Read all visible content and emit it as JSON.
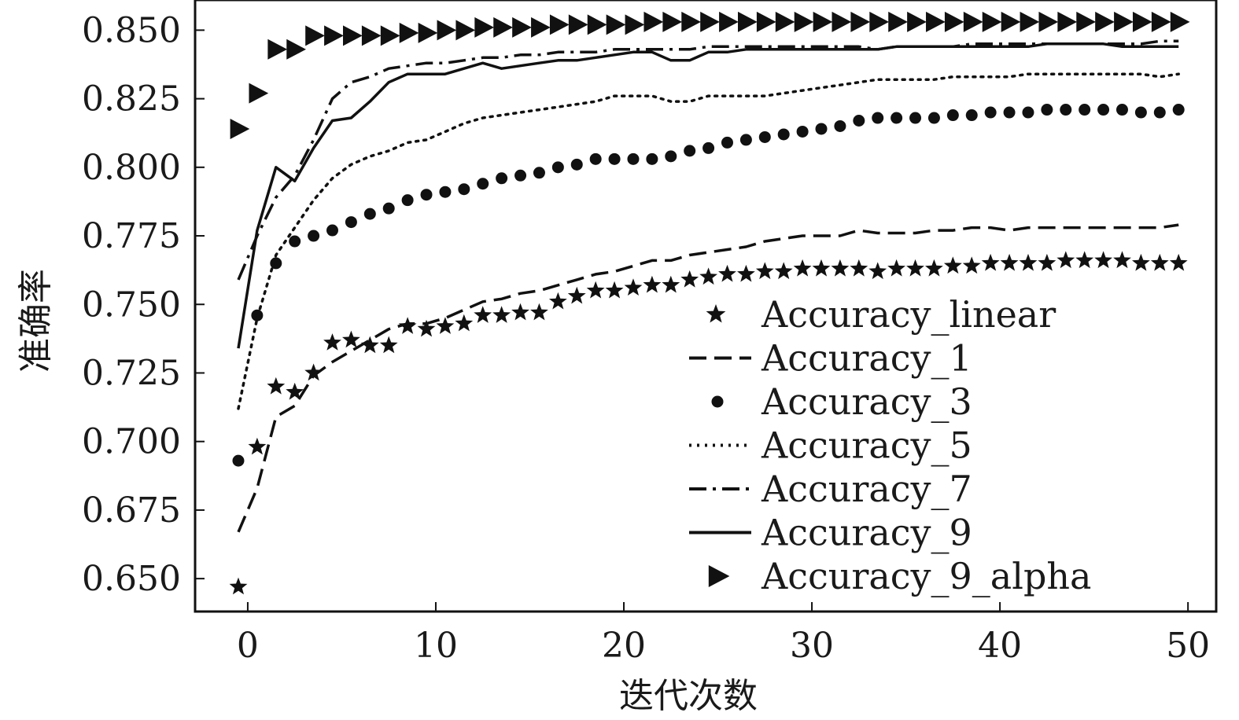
{
  "chart_data": {
    "type": "line",
    "xlabel": "迭代次数",
    "ylabel": "准确率",
    "xlim": [
      -2.8,
      51.5
    ],
    "ylim": [
      0.638,
      0.861
    ],
    "xticks": [
      0,
      10,
      20,
      30,
      40,
      50
    ],
    "xtick_labels": [
      "0",
      "10",
      "20",
      "30",
      "40",
      "50"
    ],
    "yticks": [
      0.65,
      0.675,
      0.7,
      0.725,
      0.75,
      0.775,
      0.8,
      0.825,
      0.85
    ],
    "ytick_labels": [
      "0.650",
      "0.675",
      "0.700",
      "0.725",
      "0.750",
      "0.775",
      "0.800",
      "0.825",
      "0.850"
    ],
    "grid": false,
    "legend_position": "lower-right",
    "series": [
      {
        "name": "Accuracy_linear",
        "style": "star",
        "color": "#111111",
        "x": [
          -0.5,
          0.5,
          1.5,
          2.5,
          3.5,
          4.5,
          5.5,
          6.5,
          7.5,
          8.5,
          9.5,
          10.5,
          11.5,
          12.5,
          13.5,
          14.5,
          15.5,
          16.5,
          17.5,
          18.5,
          19.5,
          20.5,
          21.5,
          22.5,
          23.5,
          24.5,
          25.5,
          26.5,
          27.5,
          28.5,
          29.5,
          30.5,
          31.5,
          32.5,
          33.5,
          34.5,
          35.5,
          36.5,
          37.5,
          38.5,
          39.5,
          40.5,
          41.5,
          42.5,
          43.5,
          44.5,
          45.5,
          46.5,
          47.5,
          48.5,
          49.5
        ],
        "y": [
          0.647,
          0.698,
          0.72,
          0.718,
          0.725,
          0.736,
          0.737,
          0.735,
          0.735,
          0.742,
          0.741,
          0.742,
          0.743,
          0.746,
          0.746,
          0.747,
          0.747,
          0.751,
          0.753,
          0.755,
          0.755,
          0.756,
          0.757,
          0.757,
          0.759,
          0.76,
          0.761,
          0.761,
          0.762,
          0.762,
          0.763,
          0.763,
          0.763,
          0.763,
          0.762,
          0.763,
          0.763,
          0.763,
          0.764,
          0.764,
          0.765,
          0.765,
          0.765,
          0.765,
          0.766,
          0.766,
          0.766,
          0.766,
          0.765,
          0.765,
          0.765
        ]
      },
      {
        "name": "Accuracy_1",
        "style": "dashed",
        "color": "#111111",
        "x": [
          -0.5,
          0.5,
          1.5,
          2.5,
          3.5,
          4.5,
          5.5,
          6.5,
          7.5,
          8.5,
          9.5,
          10.5,
          11.5,
          12.5,
          13.5,
          14.5,
          15.5,
          16.5,
          17.5,
          18.5,
          19.5,
          20.5,
          21.5,
          22.5,
          23.5,
          24.5,
          25.5,
          26.5,
          27.5,
          28.5,
          29.5,
          30.5,
          31.5,
          32.5,
          33.5,
          34.5,
          35.5,
          36.5,
          37.5,
          38.5,
          39.5,
          40.5,
          41.5,
          42.5,
          43.5,
          44.5,
          45.5,
          46.5,
          47.5,
          48.5,
          49.5
        ],
        "y": [
          0.667,
          0.683,
          0.709,
          0.713,
          0.724,
          0.729,
          0.733,
          0.737,
          0.741,
          0.743,
          0.743,
          0.745,
          0.748,
          0.751,
          0.752,
          0.754,
          0.755,
          0.757,
          0.759,
          0.761,
          0.762,
          0.764,
          0.766,
          0.766,
          0.768,
          0.769,
          0.77,
          0.771,
          0.773,
          0.774,
          0.775,
          0.775,
          0.775,
          0.777,
          0.776,
          0.776,
          0.776,
          0.777,
          0.777,
          0.778,
          0.778,
          0.777,
          0.778,
          0.778,
          0.778,
          0.778,
          0.778,
          0.778,
          0.778,
          0.778,
          0.779
        ]
      },
      {
        "name": "Accuracy_3",
        "style": "dots",
        "color": "#111111",
        "x": [
          -0.5,
          0.5,
          1.5,
          2.5,
          3.5,
          4.5,
          5.5,
          6.5,
          7.5,
          8.5,
          9.5,
          10.5,
          11.5,
          12.5,
          13.5,
          14.5,
          15.5,
          16.5,
          17.5,
          18.5,
          19.5,
          20.5,
          21.5,
          22.5,
          23.5,
          24.5,
          25.5,
          26.5,
          27.5,
          28.5,
          29.5,
          30.5,
          31.5,
          32.5,
          33.5,
          34.5,
          35.5,
          36.5,
          37.5,
          38.5,
          39.5,
          40.5,
          41.5,
          42.5,
          43.5,
          44.5,
          45.5,
          46.5,
          47.5,
          48.5,
          49.5
        ],
        "y": [
          0.693,
          0.746,
          0.765,
          0.773,
          0.775,
          0.777,
          0.78,
          0.783,
          0.785,
          0.788,
          0.79,
          0.791,
          0.792,
          0.794,
          0.796,
          0.797,
          0.798,
          0.8,
          0.801,
          0.803,
          0.803,
          0.803,
          0.803,
          0.804,
          0.806,
          0.807,
          0.809,
          0.81,
          0.811,
          0.812,
          0.813,
          0.814,
          0.815,
          0.817,
          0.818,
          0.818,
          0.818,
          0.818,
          0.819,
          0.819,
          0.82,
          0.82,
          0.82,
          0.821,
          0.821,
          0.821,
          0.821,
          0.821,
          0.82,
          0.82,
          0.821
        ]
      },
      {
        "name": "Accuracy_5",
        "style": "dotted",
        "color": "#111111",
        "x": [
          -0.5,
          0.5,
          1.5,
          2.5,
          3.5,
          4.5,
          5.5,
          6.5,
          7.5,
          8.5,
          9.5,
          10.5,
          11.5,
          12.5,
          13.5,
          14.5,
          15.5,
          16.5,
          17.5,
          18.5,
          19.5,
          20.5,
          21.5,
          22.5,
          23.5,
          24.5,
          25.5,
          26.5,
          27.5,
          28.5,
          29.5,
          30.5,
          31.5,
          32.5,
          33.5,
          34.5,
          35.5,
          36.5,
          37.5,
          38.5,
          39.5,
          40.5,
          41.5,
          42.5,
          43.5,
          44.5,
          45.5,
          46.5,
          47.5,
          48.5,
          49.5
        ],
        "y": [
          0.712,
          0.745,
          0.768,
          0.778,
          0.788,
          0.796,
          0.801,
          0.804,
          0.806,
          0.809,
          0.81,
          0.813,
          0.816,
          0.818,
          0.819,
          0.82,
          0.821,
          0.822,
          0.823,
          0.824,
          0.826,
          0.826,
          0.826,
          0.824,
          0.824,
          0.826,
          0.826,
          0.826,
          0.826,
          0.827,
          0.828,
          0.829,
          0.83,
          0.831,
          0.832,
          0.832,
          0.832,
          0.832,
          0.833,
          0.833,
          0.833,
          0.833,
          0.834,
          0.834,
          0.834,
          0.834,
          0.834,
          0.834,
          0.834,
          0.833,
          0.834
        ]
      },
      {
        "name": "Accuracy_7",
        "style": "dashdot",
        "color": "#111111",
        "x": [
          -0.5,
          0.5,
          1.5,
          2.5,
          3.5,
          4.5,
          5.5,
          6.5,
          7.5,
          8.5,
          9.5,
          10.5,
          11.5,
          12.5,
          13.5,
          14.5,
          15.5,
          16.5,
          17.5,
          18.5,
          19.5,
          20.5,
          21.5,
          22.5,
          23.5,
          24.5,
          25.5,
          26.5,
          27.5,
          28.5,
          29.5,
          30.5,
          31.5,
          32.5,
          33.5,
          34.5,
          35.5,
          36.5,
          37.5,
          38.5,
          39.5,
          40.5,
          41.5,
          42.5,
          43.5,
          44.5,
          45.5,
          46.5,
          47.5,
          48.5,
          49.5
        ],
        "y": [
          0.759,
          0.775,
          0.789,
          0.797,
          0.81,
          0.825,
          0.831,
          0.833,
          0.836,
          0.837,
          0.838,
          0.838,
          0.839,
          0.84,
          0.84,
          0.841,
          0.841,
          0.842,
          0.842,
          0.842,
          0.843,
          0.843,
          0.843,
          0.843,
          0.843,
          0.844,
          0.844,
          0.844,
          0.844,
          0.844,
          0.844,
          0.844,
          0.844,
          0.844,
          0.843,
          0.844,
          0.844,
          0.844,
          0.844,
          0.845,
          0.845,
          0.845,
          0.845,
          0.845,
          0.845,
          0.845,
          0.845,
          0.845,
          0.845,
          0.846,
          0.846
        ]
      },
      {
        "name": "Accuracy_9",
        "style": "solid",
        "color": "#111111",
        "x": [
          -0.5,
          0.5,
          1.5,
          2.5,
          3.5,
          4.5,
          5.5,
          6.5,
          7.5,
          8.5,
          9.5,
          10.5,
          11.5,
          12.5,
          13.5,
          14.5,
          15.5,
          16.5,
          17.5,
          18.5,
          19.5,
          20.5,
          21.5,
          22.5,
          23.5,
          24.5,
          25.5,
          26.5,
          27.5,
          28.5,
          29.5,
          30.5,
          31.5,
          32.5,
          33.5,
          34.5,
          35.5,
          36.5,
          37.5,
          38.5,
          39.5,
          40.5,
          41.5,
          42.5,
          43.5,
          44.5,
          45.5,
          46.5,
          47.5,
          48.5,
          49.5
        ],
        "y": [
          0.734,
          0.777,
          0.8,
          0.795,
          0.807,
          0.817,
          0.818,
          0.824,
          0.831,
          0.834,
          0.834,
          0.834,
          0.836,
          0.838,
          0.836,
          0.837,
          0.838,
          0.839,
          0.839,
          0.84,
          0.841,
          0.842,
          0.842,
          0.839,
          0.839,
          0.842,
          0.842,
          0.843,
          0.843,
          0.843,
          0.843,
          0.843,
          0.843,
          0.843,
          0.843,
          0.844,
          0.844,
          0.844,
          0.844,
          0.844,
          0.844,
          0.844,
          0.844,
          0.845,
          0.845,
          0.845,
          0.845,
          0.844,
          0.844,
          0.844,
          0.844
        ]
      },
      {
        "name": "Accuracy_9_alpha",
        "style": "triangle",
        "color": "#111111",
        "x": [
          -0.5,
          0.5,
          1.5,
          2.5,
          3.5,
          4.5,
          5.5,
          6.5,
          7.5,
          8.5,
          9.5,
          10.5,
          11.5,
          12.5,
          13.5,
          14.5,
          15.5,
          16.5,
          17.5,
          18.5,
          19.5,
          20.5,
          21.5,
          22.5,
          23.5,
          24.5,
          25.5,
          26.5,
          27.5,
          28.5,
          29.5,
          30.5,
          31.5,
          32.5,
          33.5,
          34.5,
          35.5,
          36.5,
          37.5,
          38.5,
          39.5,
          40.5,
          41.5,
          42.5,
          43.5,
          44.5,
          45.5,
          46.5,
          47.5,
          48.5,
          49.5
        ],
        "y": [
          0.814,
          0.827,
          0.843,
          0.843,
          0.848,
          0.848,
          0.848,
          0.848,
          0.848,
          0.849,
          0.849,
          0.85,
          0.85,
          0.851,
          0.851,
          0.851,
          0.851,
          0.852,
          0.852,
          0.852,
          0.852,
          0.852,
          0.853,
          0.853,
          0.853,
          0.853,
          0.853,
          0.853,
          0.853,
          0.853,
          0.853,
          0.853,
          0.853,
          0.853,
          0.853,
          0.853,
          0.853,
          0.853,
          0.853,
          0.853,
          0.853,
          0.853,
          0.853,
          0.853,
          0.853,
          0.853,
          0.853,
          0.853,
          0.853,
          0.853,
          0.853
        ]
      }
    ]
  }
}
